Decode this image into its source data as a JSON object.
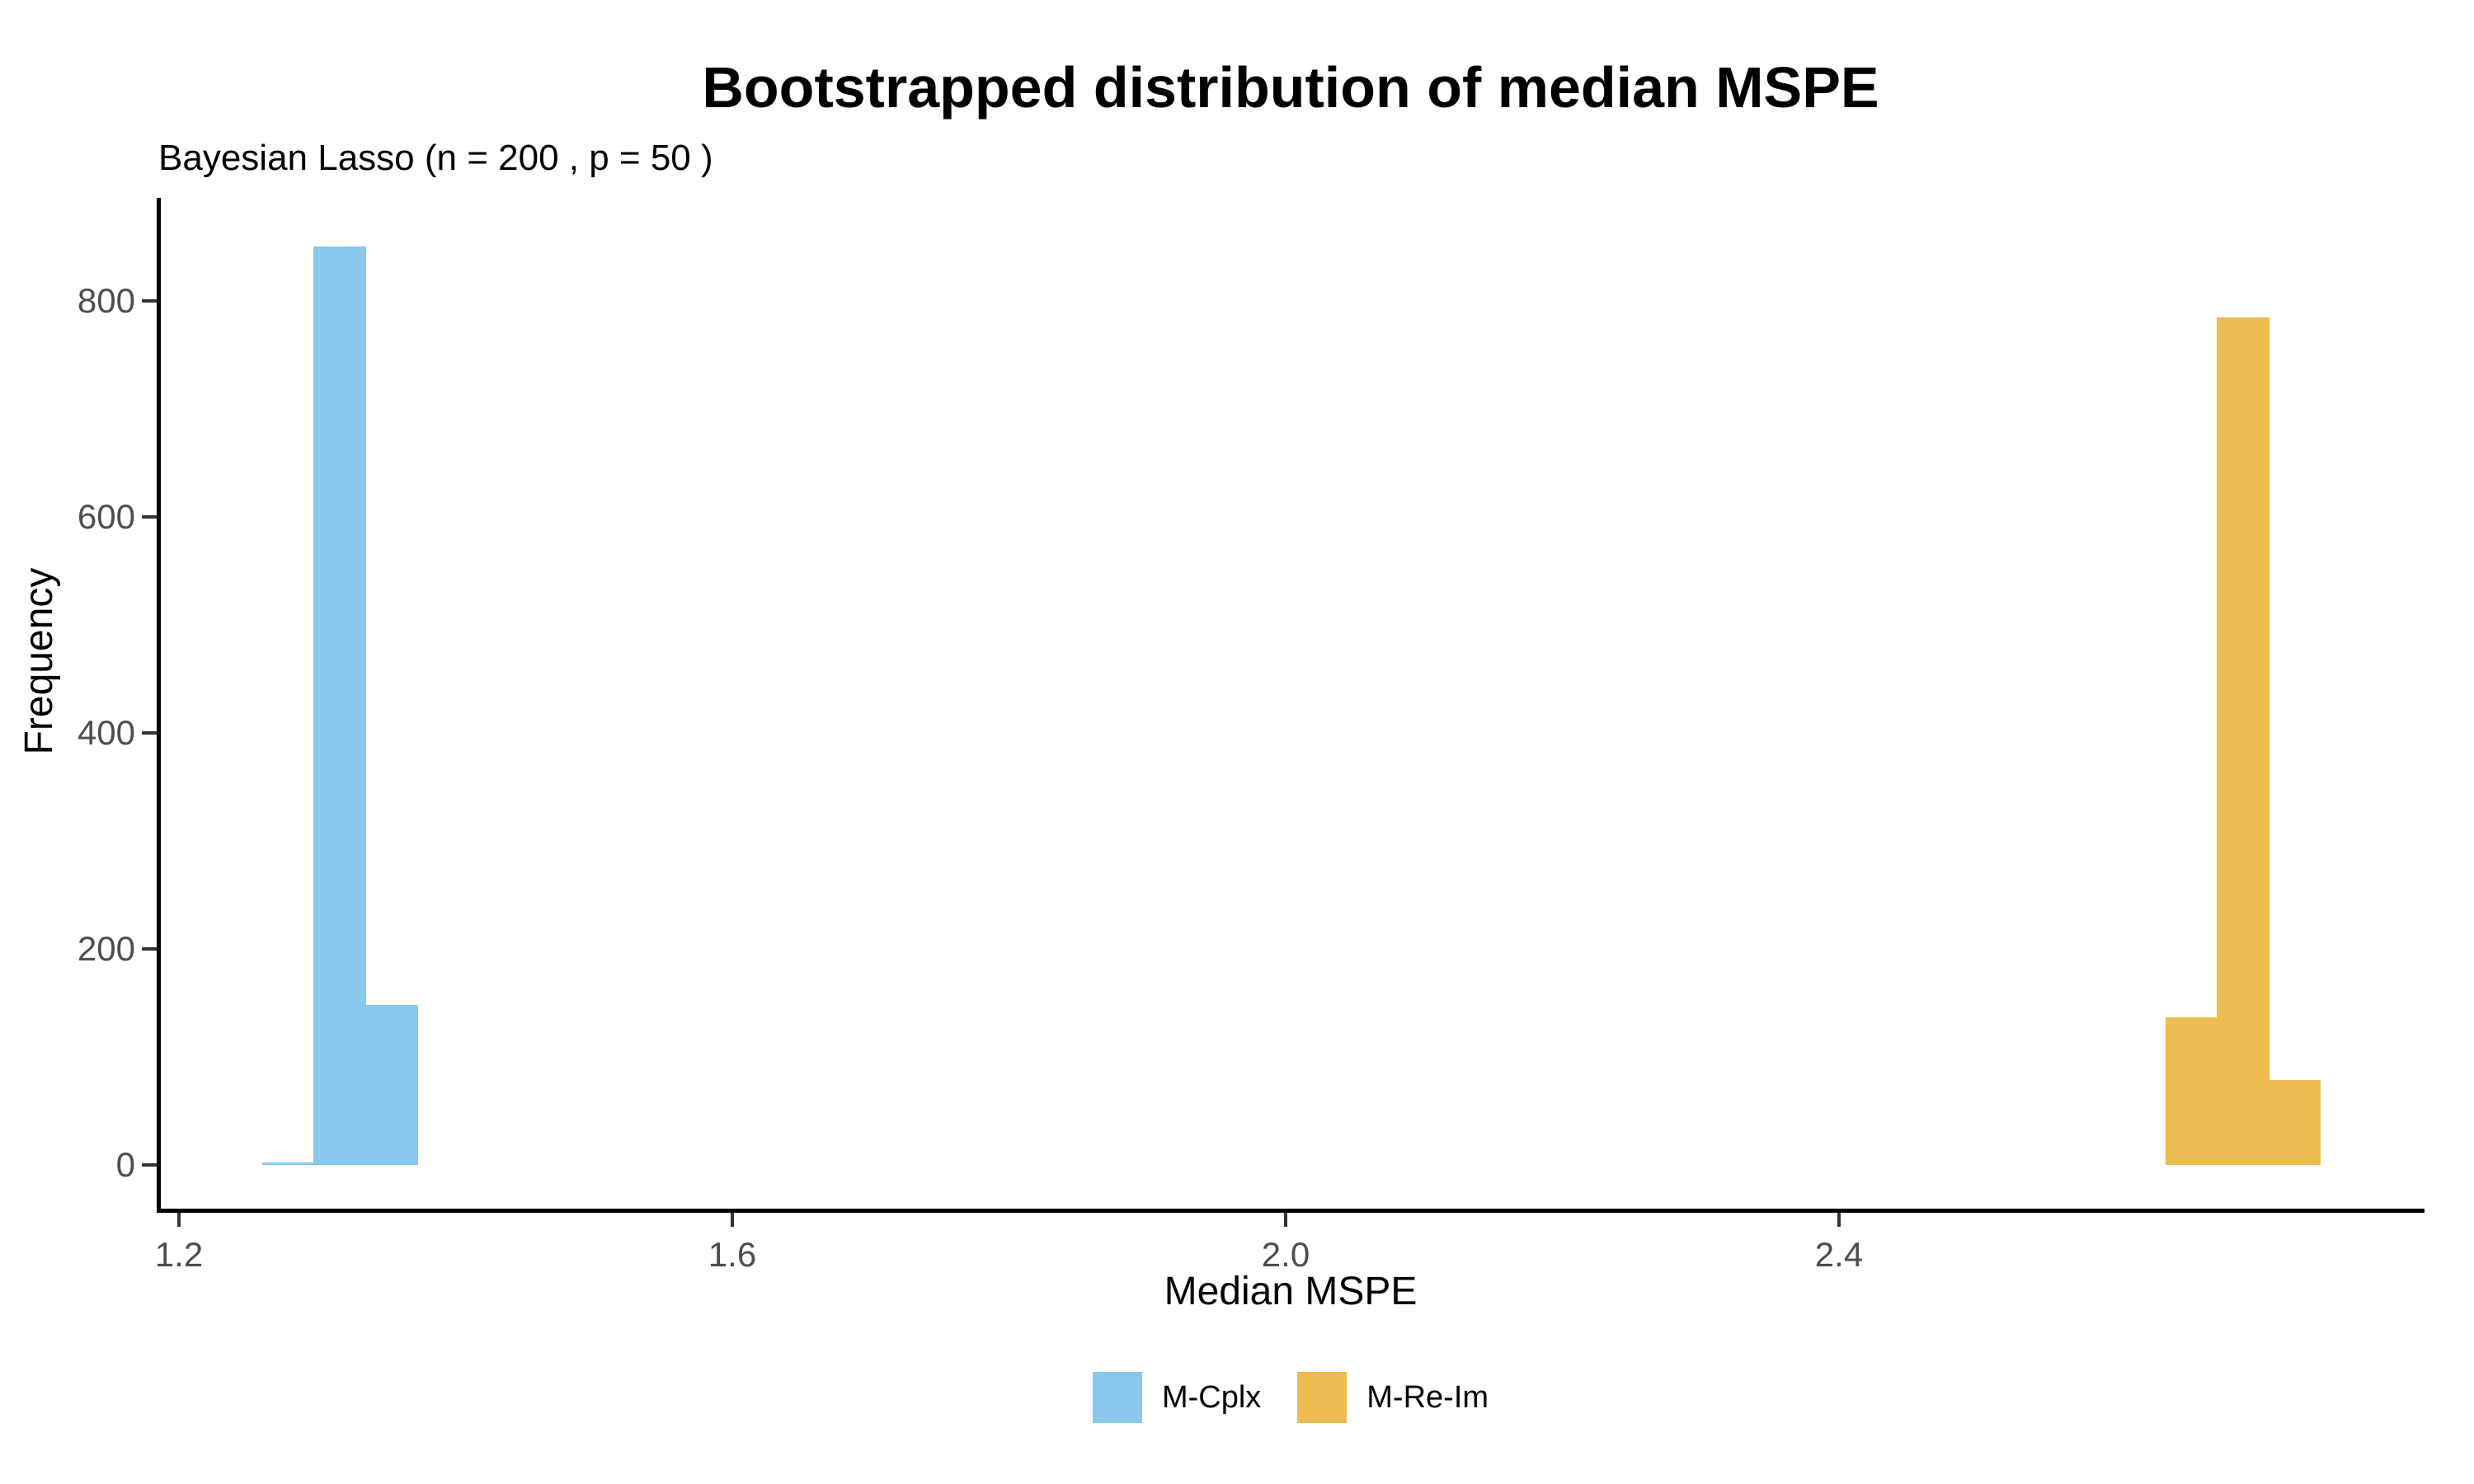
{
  "chart_data": {
    "type": "bar",
    "subtype": "histogram",
    "title": "Bootstrapped distribution of median MSPE",
    "subtitle": "Bayesian Lasso (n = 200 , p = 50 )",
    "xlabel": "Median MSPE",
    "ylabel": "Frequency",
    "x_ticks": [
      1.2,
      1.6,
      2.0,
      2.4
    ],
    "y_ticks": [
      0,
      200,
      400,
      600,
      800
    ],
    "xlim": [
      1.185,
      2.84
    ],
    "ylim": [
      0,
      895
    ],
    "grid": false,
    "legend_position": "bottom",
    "series": [
      {
        "name": "M-Cplx",
        "color": "#87C8EC",
        "bins": [
          {
            "x0": 1.26,
            "x1": 1.297,
            "count": 2
          },
          {
            "x0": 1.297,
            "x1": 1.335,
            "count": 850
          },
          {
            "x0": 1.335,
            "x1": 1.373,
            "count": 148
          }
        ]
      },
      {
        "name": "M-Re-Im",
        "color": "#ECBC4E",
        "bins": [
          {
            "x0": 2.636,
            "x1": 2.673,
            "count": 137
          },
          {
            "x0": 2.673,
            "x1": 2.711,
            "count": 785
          },
          {
            "x0": 2.711,
            "x1": 2.748,
            "count": 79
          }
        ]
      }
    ],
    "colors": {
      "axis_line": "#000000",
      "tick": "#333333",
      "tick_label": "#4D4D4D",
      "text": "#000000",
      "background": "#FFFFFF"
    }
  }
}
